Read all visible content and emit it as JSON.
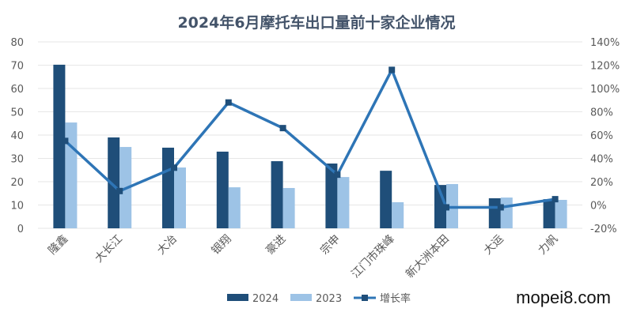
{
  "chart_data": {
    "type": "bar",
    "title": "2024年6月摩托车出口量前十家企业情况",
    "categories": [
      "隆鑫",
      "大长江",
      "大冶",
      "银翔",
      "豪进",
      "宗申",
      "江门市珠峰",
      "新大洲本田",
      "大运",
      "力帆"
    ],
    "series": [
      {
        "name": "2024",
        "type": "bar",
        "axis": "left",
        "color": "#1f4e79",
        "values": [
          70.2,
          39.0,
          34.6,
          32.9,
          28.8,
          27.8,
          24.7,
          18.6,
          12.9,
          12.5
        ]
      },
      {
        "name": "2023",
        "type": "bar",
        "axis": "left",
        "color": "#9dc3e6",
        "values": [
          45.4,
          34.9,
          26.1,
          17.6,
          17.3,
          22.0,
          11.2,
          19.0,
          13.2,
          12.2
        ]
      },
      {
        "name": "增长率",
        "type": "line",
        "axis": "right",
        "color": "#2e75b6",
        "values": [
          55,
          12,
          32,
          88,
          66,
          26,
          116,
          -2,
          -2,
          5
        ]
      }
    ],
    "ylim": [
      0,
      80
    ],
    "yticks": [
      "0",
      "10",
      "20",
      "30",
      "40",
      "50",
      "60",
      "70",
      "80"
    ],
    "y2lim": [
      -20,
      140
    ],
    "y2ticks": [
      "-20%",
      "0%",
      "20%",
      "40%",
      "60%",
      "80%",
      "100%",
      "120%",
      "140%"
    ],
    "grid": true,
    "legend": "bottom"
  },
  "watermark": "mopei8.com"
}
